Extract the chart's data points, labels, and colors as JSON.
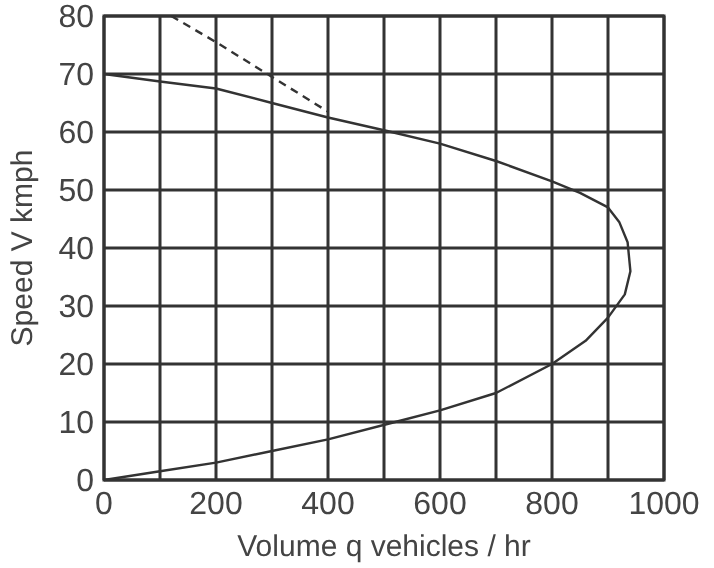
{
  "chart_data": {
    "type": "line",
    "xlabel": "Volume q vehicles / hr",
    "ylabel": "Speed  V kmph",
    "xlim": [
      0,
      1000
    ],
    "ylim": [
      0,
      80
    ],
    "xticks": [
      0,
      {
        "value": 100,
        "label": null
      },
      200,
      {
        "value": 300,
        "label": null
      },
      400,
      {
        "value": 500,
        "label": null
      },
      600,
      {
        "value": 700,
        "label": null
      },
      800,
      {
        "value": 900,
        "label": null
      },
      1000
    ],
    "yticks": [
      0,
      10,
      20,
      30,
      40,
      50,
      60,
      70,
      80
    ],
    "grid": true,
    "series": [
      {
        "color": "#333333",
        "line_style": "solid",
        "x": [
          0,
          100,
          200,
          300,
          400,
          520,
          600,
          700,
          800,
          860,
          900,
          930,
          940,
          935,
          920,
          900,
          850,
          800,
          700,
          600,
          500,
          400,
          300,
          200,
          100,
          0
        ],
        "values": [
          0,
          1.5,
          3,
          5,
          7,
          10,
          12,
          15,
          20,
          24,
          28,
          32,
          36,
          41,
          44.5,
          47,
          49.5,
          51.5,
          55,
          58,
          60.3,
          62.5,
          65,
          67.5,
          68.7,
          70
        ]
      },
      {
        "color": "#333333",
        "line_style": "dashed",
        "x": [
          120,
          200,
          300,
          400
        ],
        "values": [
          80,
          75.5,
          69.5,
          63.5
        ]
      }
    ]
  }
}
